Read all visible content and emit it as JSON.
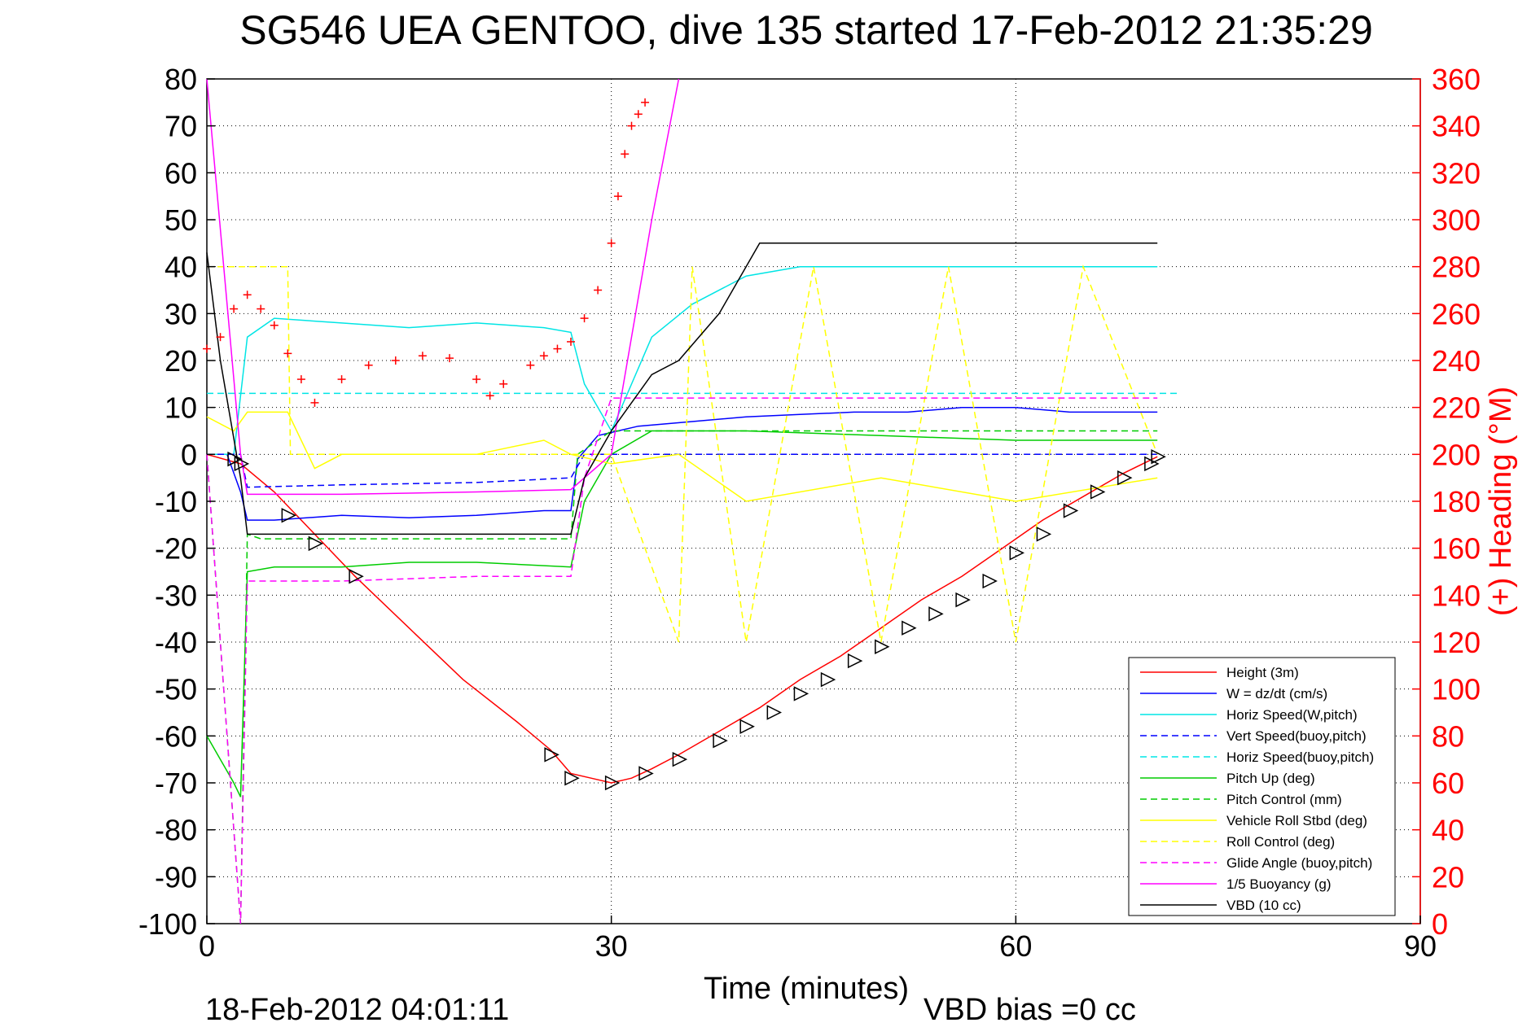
{
  "figure": {
    "title": "SG546 UEA GENTOO, dive 135 started 17-Feb-2012 21:35:29",
    "footer_left": "18-Feb-2012 04:01:11",
    "footer_right": "VBD bias =0 cc"
  },
  "chart_data": {
    "type": "line",
    "title": "SG546 UEA GENTOO, dive 135 started 17-Feb-2012 21:35:29",
    "xlabel": "Time (minutes)",
    "ylabel": "",
    "ylabel_right": "(+) Heading (°M)",
    "xlim": [
      0,
      90
    ],
    "ylim": [
      -100,
      80
    ],
    "ylim_right": [
      0,
      360
    ],
    "xticks": [
      0,
      30,
      60,
      90
    ],
    "yticks": [
      80,
      70,
      60,
      50,
      40,
      30,
      20,
      10,
      0,
      -10,
      -20,
      -30,
      -40,
      -50,
      -60,
      -70,
      -80,
      -90,
      -100
    ],
    "yticks_right": [
      360,
      340,
      320,
      300,
      280,
      260,
      240,
      220,
      200,
      180,
      160,
      140,
      120,
      100,
      80,
      60,
      40,
      20,
      0
    ],
    "grid": true,
    "legend_position": "bottom-right",
    "colors": {
      "axis": "#000000",
      "heading": "#ff0000",
      "grid": "#000000"
    },
    "series": [
      {
        "name": "Height (3m)",
        "color": "#ff0000",
        "dash": "solid",
        "x": [
          0,
          2.5,
          5,
          8,
          11,
          15,
          19,
          23,
          25.5,
          27,
          28.5,
          30,
          31.5,
          33,
          35,
          38,
          41,
          44,
          47,
          50,
          53,
          56,
          59,
          62,
          65,
          68,
          70.5
        ],
        "y": [
          0,
          -2,
          -8,
          -17,
          -26,
          -37,
          -48,
          -57,
          -63,
          -68,
          -69,
          -70,
          -69,
          -67,
          -64,
          -59,
          -54,
          -48,
          -43,
          -37,
          -31,
          -26,
          -20,
          -14,
          -9,
          -4,
          -0.5
        ]
      },
      {
        "name": "W = dz/dt (cm/s)",
        "color": "#0000ff",
        "dash": "solid",
        "x": [
          0,
          1.5,
          2.5,
          3,
          5,
          10,
          15,
          20,
          25,
          27,
          27.5,
          29,
          32,
          36,
          40,
          44,
          48,
          52,
          56,
          60,
          64,
          68,
          70.5
        ],
        "y": [
          0,
          0,
          -8,
          -14,
          -14,
          -13,
          -13.5,
          -13,
          -12,
          -12,
          -1,
          4,
          6,
          7,
          8,
          8.5,
          9,
          9,
          10,
          10,
          9,
          9,
          9
        ]
      },
      {
        "name": "Horiz Speed(W,pitch)",
        "color": "#00e5e5",
        "dash": "solid",
        "x": [
          0,
          2,
          3,
          5,
          10,
          15,
          20,
          25,
          27,
          28,
          30,
          33,
          36,
          40,
          44,
          48,
          52,
          56,
          60,
          64,
          68,
          70.5
        ],
        "y": [
          0,
          0,
          25,
          29,
          28,
          27,
          28,
          27,
          26,
          15,
          5,
          25,
          32,
          38,
          40,
          40,
          40,
          40,
          40,
          40,
          40,
          40
        ]
      },
      {
        "name": "Vert Speed(buoy,pitch)",
        "color": "#0000ff",
        "dash": "dashed",
        "x": [
          0,
          2.5,
          3,
          10,
          20,
          27,
          28,
          30,
          70.5
        ],
        "y": [
          0,
          0,
          -7,
          -6.5,
          -6,
          -5,
          0,
          0,
          0
        ]
      },
      {
        "name": "Horiz Speed(buoy,pitch)",
        "color": "#00e5e5",
        "dash": "dashed",
        "x": [
          0,
          72
        ],
        "y": [
          13,
          13
        ]
      },
      {
        "name": "Pitch Up (deg)",
        "color": "#00cc00",
        "dash": "solid",
        "x": [
          0,
          1,
          2,
          2.5,
          3,
          5,
          10,
          15,
          20,
          27,
          28,
          30,
          33,
          40,
          50,
          60,
          70.5
        ],
        "y": [
          -60,
          -65,
          -70,
          -73,
          -25,
          -24,
          -24,
          -23,
          -23,
          -24,
          -10,
          0,
          5,
          5,
          4,
          3,
          3
        ]
      },
      {
        "name": "Pitch Control (mm)",
        "color": "#00cc00",
        "dash": "dashed",
        "x": [
          0,
          2.5,
          3,
          4,
          27,
          27.5,
          30,
          70.5
        ],
        "y": [
          0,
          -100,
          -17,
          -18,
          -18,
          0,
          5,
          5
        ]
      },
      {
        "name": "Vehicle Roll Stbd (deg)",
        "color": "#ffff00",
        "dash": "solid",
        "x": [
          0,
          2,
          3,
          6,
          8,
          10,
          20,
          25,
          27,
          30,
          35,
          40,
          50,
          60,
          70.5
        ],
        "y": [
          8,
          5,
          9,
          9,
          -3,
          0,
          0,
          3,
          0,
          -2,
          0,
          -10,
          -5,
          -10,
          -5
        ]
      },
      {
        "name": "Roll Control (deg)",
        "color": "#ffff00",
        "dash": "dashed",
        "x": [
          0,
          1,
          1.5,
          6,
          6.2,
          27,
          30,
          35,
          36,
          40,
          45,
          50,
          55,
          60,
          65,
          70.5
        ],
        "y": [
          40,
          40,
          40,
          40,
          0,
          0,
          0,
          -40,
          40,
          -40,
          40,
          -40,
          40,
          -40,
          40,
          0
        ]
      },
      {
        "name": "Glide Angle (buoy,pitch)",
        "color": "#ff00ff",
        "dash": "dashed",
        "x": [
          0,
          2.5,
          3,
          10,
          20,
          27,
          28,
          30,
          70.5
        ],
        "y": [
          0,
          -100,
          -27,
          -27,
          -26,
          -26,
          -5,
          12,
          12
        ]
      },
      {
        "name": "1/5 Buoyancy (g)",
        "color": "#ff00ff",
        "dash": "solid",
        "x": [
          0,
          2.5,
          3,
          10,
          20,
          27,
          30,
          33,
          35
        ],
        "y": [
          80,
          0,
          -8.5,
          -8.5,
          -8,
          -7.5,
          0,
          50,
          80
        ]
      },
      {
        "name": "VBD (10 cc)",
        "color": "#000000",
        "dash": "solid",
        "x": [
          0,
          1,
          2.5,
          3,
          10,
          20,
          27,
          28,
          30,
          33,
          35,
          38,
          41,
          45,
          50,
          60,
          70.5
        ],
        "y": [
          43,
          20,
          -5,
          -17,
          -17,
          -17,
          -17,
          -5,
          5,
          17,
          20,
          30,
          45,
          45,
          45,
          45,
          45
        ]
      }
    ],
    "heading_series": {
      "name": "(+) Heading (°M)",
      "color": "#ff0000",
      "x": [
        0,
        1,
        2,
        3,
        4,
        5,
        6,
        7,
        8,
        10,
        12,
        14,
        16,
        18,
        20,
        21,
        22,
        24,
        25,
        26,
        27,
        28,
        29,
        30,
        30.5,
        31,
        31.5,
        32,
        32.5
      ],
      "y": [
        245,
        250,
        262,
        268,
        262,
        255,
        243,
        232,
        222,
        232,
        238,
        240,
        242,
        241,
        232,
        225,
        230,
        238,
        242,
        245,
        248,
        258,
        270,
        290,
        310,
        328,
        340,
        345,
        350
      ]
    },
    "glider_markers": {
      "x": [
        2,
        2.5,
        6,
        8,
        11,
        25.5,
        27,
        30,
        32.5,
        35,
        38,
        40,
        42,
        44,
        46,
        48,
        50,
        52,
        54,
        56,
        58,
        60,
        62,
        64,
        66,
        68,
        70,
        70.5
      ],
      "y": [
        -1,
        -2,
        -13,
        -19,
        -26,
        -64,
        -69,
        -70,
        -68,
        -65,
        -61,
        -58,
        -55,
        -51,
        -48,
        -44,
        -41,
        -37,
        -34,
        -31,
        -27,
        -21,
        -17,
        -12,
        -8,
        -5,
        -2,
        -0.5
      ]
    }
  }
}
